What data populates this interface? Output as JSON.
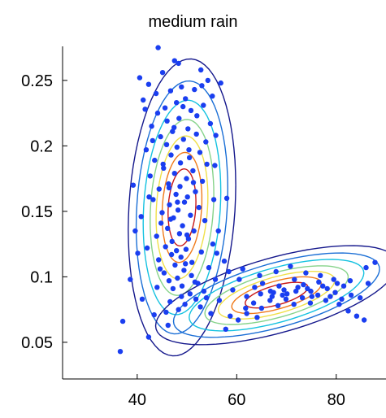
{
  "chart_data": {
    "type": "scatter",
    "title": "medium rain",
    "xlabel": "",
    "ylabel": "",
    "xlim": [
      25,
      90
    ],
    "ylim": [
      0.022,
      0.276
    ],
    "x_ticks": [
      40,
      60,
      80
    ],
    "y_ticks": [
      0.05,
      0.1,
      0.15,
      0.2,
      0.25
    ],
    "x_tick_labels": [
      "40",
      "60",
      "80"
    ],
    "y_tick_labels": [
      "0.05",
      "0.1",
      "0.15",
      "0.2",
      "0.25"
    ],
    "grid": false,
    "legend": "none",
    "point_color": "#1a3ef0",
    "contour_colors": [
      "#15188c",
      "#1b6fd6",
      "#15c2e0",
      "#86d38a",
      "#f0e04a",
      "#f07a1a",
      "#c81818"
    ],
    "mixture_components": [
      {
        "center": [
          49,
          0.153
        ],
        "sd_x": 4.0,
        "sd_y": 0.042,
        "corr": 0.15
      },
      {
        "center": [
          68,
          0.086
        ],
        "sd_x": 9.0,
        "sd_y": 0.014,
        "corr": 0.62
      }
    ],
    "points": [
      [
        44.2,
        0.275
      ],
      [
        47.5,
        0.265
      ],
      [
        48.3,
        0.263
      ],
      [
        52.8,
        0.258
      ],
      [
        45.1,
        0.256
      ],
      [
        40.5,
        0.252
      ],
      [
        54.2,
        0.25
      ],
      [
        56.8,
        0.248
      ],
      [
        42.3,
        0.247
      ],
      [
        48.9,
        0.245
      ],
      [
        51.5,
        0.243
      ],
      [
        46.7,
        0.242
      ],
      [
        43.8,
        0.24
      ],
      [
        55.1,
        0.238
      ],
      [
        49.7,
        0.236
      ],
      [
        41.2,
        0.235
      ],
      [
        47.9,
        0.233
      ],
      [
        53.3,
        0.231
      ],
      [
        45.6,
        0.229
      ],
      [
        50.8,
        0.227
      ],
      [
        44.1,
        0.225
      ],
      [
        52.0,
        0.223
      ],
      [
        48.4,
        0.221
      ],
      [
        46.0,
        0.219
      ],
      [
        54.7,
        0.217
      ],
      [
        42.9,
        0.215
      ],
      [
        50.2,
        0.213
      ],
      [
        47.1,
        0.211
      ],
      [
        51.9,
        0.209
      ],
      [
        44.7,
        0.207
      ],
      [
        49.3,
        0.205
      ],
      [
        53.8,
        0.203
      ],
      [
        45.9,
        0.201
      ],
      [
        48.0,
        0.199
      ],
      [
        41.8,
        0.197
      ],
      [
        52.6,
        0.195
      ],
      [
        46.8,
        0.193
      ],
      [
        50.5,
        0.191
      ],
      [
        43.5,
        0.189
      ],
      [
        48.7,
        0.187
      ],
      [
        55.6,
        0.185
      ],
      [
        45.3,
        0.183
      ],
      [
        51.2,
        0.181
      ],
      [
        47.5,
        0.179
      ],
      [
        42.6,
        0.177
      ],
      [
        49.9,
        0.175
      ],
      [
        53.1,
        0.173
      ],
      [
        46.3,
        0.171
      ],
      [
        48.6,
        0.169
      ],
      [
        44.4,
        0.167
      ],
      [
        51.7,
        0.165
      ],
      [
        47.8,
        0.163
      ],
      [
        50.1,
        0.161
      ],
      [
        43.2,
        0.159
      ],
      [
        49.5,
        0.157
      ],
      [
        46.5,
        0.155
      ],
      [
        52.4,
        0.153
      ],
      [
        48.2,
        0.151
      ],
      [
        45.0,
        0.149
      ],
      [
        50.7,
        0.147
      ],
      [
        47.3,
        0.145
      ],
      [
        53.6,
        0.143
      ],
      [
        44.8,
        0.141
      ],
      [
        49.1,
        0.139
      ],
      [
        46.1,
        0.137
      ],
      [
        51.4,
        0.135
      ],
      [
        48.5,
        0.133
      ],
      [
        43.9,
        0.131
      ],
      [
        50.3,
        0.129
      ],
      [
        47.0,
        0.127
      ],
      [
        55.2,
        0.125
      ],
      [
        45.7,
        0.123
      ],
      [
        49.8,
        0.121
      ],
      [
        52.9,
        0.119
      ],
      [
        46.9,
        0.117
      ],
      [
        48.8,
        0.115
      ],
      [
        44.3,
        0.113
      ],
      [
        51.0,
        0.111
      ],
      [
        47.6,
        0.109
      ],
      [
        54.4,
        0.107
      ],
      [
        49.4,
        0.105
      ],
      [
        45.4,
        0.103
      ],
      [
        50.9,
        0.101
      ],
      [
        48.1,
        0.099
      ],
      [
        46.4,
        0.097
      ],
      [
        52.2,
        0.095
      ],
      [
        49.0,
        0.093
      ],
      [
        47.2,
        0.091
      ],
      [
        53.4,
        0.089
      ],
      [
        50.6,
        0.087
      ],
      [
        48.9,
        0.085
      ],
      [
        51.8,
        0.083
      ],
      [
        46.6,
        0.081
      ],
      [
        49.6,
        0.079
      ],
      [
        52.7,
        0.077
      ],
      [
        48.3,
        0.075
      ],
      [
        45.8,
        0.073
      ],
      [
        43.4,
        0.071
      ],
      [
        41.0,
        0.083
      ],
      [
        39.6,
        0.135
      ],
      [
        40.1,
        0.118
      ],
      [
        39.2,
        0.17
      ],
      [
        56.3,
        0.135
      ],
      [
        57.5,
        0.112
      ],
      [
        58.0,
        0.16
      ],
      [
        38.6,
        0.098
      ],
      [
        37.1,
        0.066
      ],
      [
        36.6,
        0.043
      ],
      [
        42.3,
        0.054
      ],
      [
        46.2,
        0.063
      ],
      [
        60.5,
        0.098
      ],
      [
        62.0,
        0.085
      ],
      [
        56.5,
        0.082
      ],
      [
        59.2,
        0.09
      ],
      [
        63.6,
        0.092
      ],
      [
        65.2,
        0.095
      ],
      [
        66.8,
        0.089
      ],
      [
        68.5,
        0.093
      ],
      [
        70.1,
        0.087
      ],
      [
        71.6,
        0.098
      ],
      [
        73.4,
        0.094
      ],
      [
        74.9,
        0.089
      ],
      [
        76.5,
        0.096
      ],
      [
        78.2,
        0.091
      ],
      [
        79.8,
        0.088
      ],
      [
        81.5,
        0.093
      ],
      [
        83.0,
        0.086
      ],
      [
        84.8,
        0.084
      ],
      [
        86.4,
        0.095
      ],
      [
        87.8,
        0.111
      ],
      [
        86.0,
        0.107
      ],
      [
        61.8,
        0.076
      ],
      [
        63.4,
        0.08
      ],
      [
        65.0,
        0.076
      ],
      [
        66.7,
        0.082
      ],
      [
        68.3,
        0.078
      ],
      [
        69.9,
        0.083
      ],
      [
        71.5,
        0.079
      ],
      [
        73.2,
        0.084
      ],
      [
        74.8,
        0.08
      ],
      [
        76.3,
        0.086
      ],
      [
        77.9,
        0.082
      ],
      [
        80.6,
        0.079
      ],
      [
        82.4,
        0.074
      ],
      [
        84.1,
        0.07
      ],
      [
        85.6,
        0.067
      ],
      [
        58.7,
        0.07
      ],
      [
        60.3,
        0.067
      ],
      [
        62.0,
        0.072
      ],
      [
        64.1,
        0.069
      ],
      [
        67.4,
        0.088
      ],
      [
        69.5,
        0.09
      ],
      [
        72.3,
        0.092
      ],
      [
        75.1,
        0.085
      ],
      [
        78.8,
        0.085
      ],
      [
        81.1,
        0.083
      ],
      [
        64.6,
        0.101
      ],
      [
        67.9,
        0.104
      ],
      [
        70.8,
        0.108
      ],
      [
        73.9,
        0.103
      ],
      [
        76.8,
        0.101
      ],
      [
        79.5,
        0.098
      ],
      [
        82.8,
        0.097
      ],
      [
        61.2,
        0.106
      ],
      [
        58.4,
        0.104
      ],
      [
        55.7,
        0.098
      ],
      [
        53.9,
        0.084
      ],
      [
        54.8,
        0.072
      ],
      [
        57.8,
        0.06
      ],
      [
        64.8,
        0.087
      ],
      [
        67.1,
        0.085
      ],
      [
        69.2,
        0.086
      ],
      [
        71.9,
        0.089
      ],
      [
        74.2,
        0.091
      ],
      [
        77.3,
        0.093
      ],
      [
        80.2,
        0.095
      ],
      [
        44.6,
        0.106
      ],
      [
        46.4,
        0.168
      ],
      [
        49.2,
        0.23
      ],
      [
        50.4,
        0.197
      ],
      [
        47.4,
        0.214
      ],
      [
        45.2,
        0.186
      ],
      [
        51.3,
        0.172
      ],
      [
        48.1,
        0.157
      ],
      [
        46.7,
        0.144
      ],
      [
        50.0,
        0.132
      ],
      [
        47.9,
        0.12
      ],
      [
        49.7,
        0.11
      ],
      [
        51.6,
        0.096
      ],
      [
        44.0,
        0.092
      ],
      [
        42.0,
        0.122
      ],
      [
        43.1,
        0.204
      ],
      [
        55.8,
        0.208
      ],
      [
        53.0,
        0.246
      ],
      [
        41.6,
        0.228
      ],
      [
        54.0,
        0.186
      ],
      [
        42.4,
        0.161
      ],
      [
        55.4,
        0.159
      ],
      [
        40.8,
        0.146
      ],
      [
        56.0,
        0.118
      ]
    ]
  }
}
